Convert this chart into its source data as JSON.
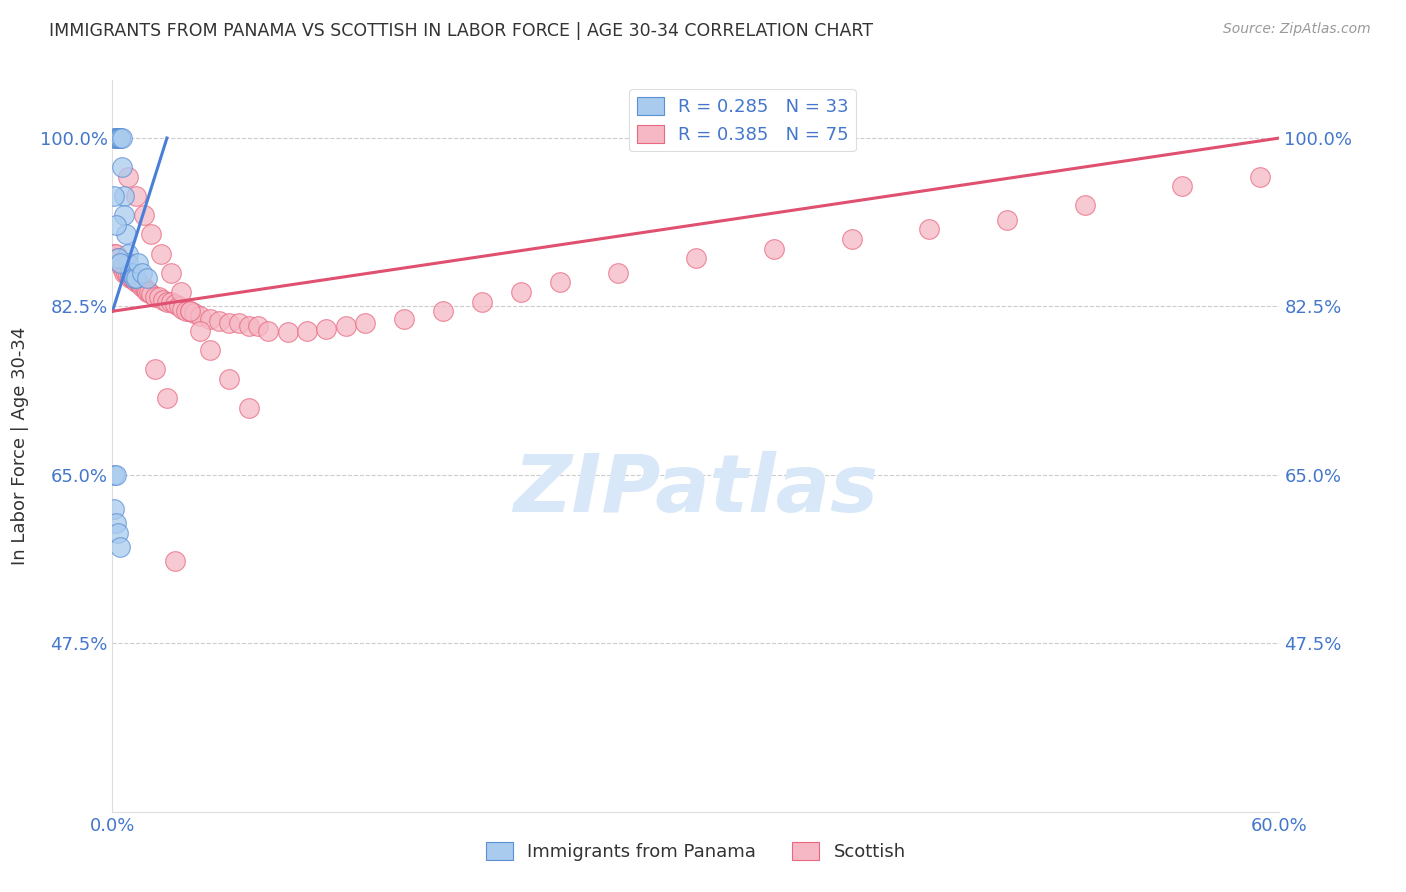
{
  "title": "IMMIGRANTS FROM PANAMA VS SCOTTISH IN LABOR FORCE | AGE 30-34 CORRELATION CHART",
  "source": "Source: ZipAtlas.com",
  "ylabel": "In Labor Force | Age 30-34",
  "xlim": [
    0.0,
    0.6
  ],
  "ylim": [
    0.3,
    1.06
  ],
  "yticks": [
    0.475,
    0.65,
    0.825,
    1.0
  ],
  "ytick_labels": [
    "47.5%",
    "65.0%",
    "82.5%",
    "100.0%"
  ],
  "blue_R": 0.285,
  "blue_N": 33,
  "pink_R": 0.385,
  "pink_N": 75,
  "blue_color": "#A8CBEE",
  "pink_color": "#F5B8C4",
  "blue_edge_color": "#5B8FD4",
  "pink_edge_color": "#E86880",
  "blue_line_color": "#4A7FD8",
  "pink_line_color": "#E05070",
  "title_color": "#333333",
  "axis_label_color": "#333333",
  "tick_color": "#4477CC",
  "source_color": "#999999",
  "watermark_color": "#D8E8F8",
  "blue_trend_x0": 0.0,
  "blue_trend_y0": 0.82,
  "blue_trend_x1": 0.028,
  "blue_trend_y1": 1.0,
  "pink_trend_x0": 0.0,
  "pink_trend_y0": 0.82,
  "pink_trend_x1": 0.6,
  "pink_trend_y1": 1.0,
  "blue_scatter_x": [
    0.001,
    0.002,
    0.002,
    0.003,
    0.003,
    0.003,
    0.004,
    0.004,
    0.004,
    0.005,
    0.005,
    0.006,
    0.006,
    0.007,
    0.008,
    0.008,
    0.009,
    0.01,
    0.011,
    0.012,
    0.001,
    0.002,
    0.003,
    0.004,
    0.001,
    0.002,
    0.001,
    0.002,
    0.003,
    0.004,
    0.013,
    0.015,
    0.018
  ],
  "blue_scatter_y": [
    1.0,
    1.0,
    1.0,
    1.0,
    1.0,
    1.0,
    1.0,
    1.0,
    1.0,
    1.0,
    0.97,
    0.94,
    0.92,
    0.9,
    0.88,
    0.87,
    0.86,
    0.86,
    0.855,
    0.855,
    0.94,
    0.91,
    0.875,
    0.87,
    0.65,
    0.65,
    0.615,
    0.6,
    0.59,
    0.575,
    0.87,
    0.86,
    0.855
  ],
  "pink_scatter_x": [
    0.001,
    0.002,
    0.003,
    0.004,
    0.005,
    0.006,
    0.007,
    0.008,
    0.009,
    0.01,
    0.011,
    0.012,
    0.013,
    0.014,
    0.015,
    0.016,
    0.017,
    0.018,
    0.019,
    0.02,
    0.022,
    0.024,
    0.026,
    0.028,
    0.03,
    0.032,
    0.034,
    0.036,
    0.038,
    0.04,
    0.042,
    0.045,
    0.05,
    0.055,
    0.06,
    0.065,
    0.07,
    0.075,
    0.08,
    0.09,
    0.1,
    0.11,
    0.12,
    0.13,
    0.15,
    0.17,
    0.19,
    0.21,
    0.23,
    0.26,
    0.3,
    0.34,
    0.38,
    0.42,
    0.46,
    0.5,
    0.55,
    0.59,
    0.008,
    0.012,
    0.016,
    0.02,
    0.025,
    0.03,
    0.035,
    0.04,
    0.045,
    0.05,
    0.06,
    0.07,
    0.022,
    0.028,
    0.032
  ],
  "pink_scatter_y": [
    0.88,
    0.88,
    0.875,
    0.87,
    0.865,
    0.86,
    0.86,
    0.858,
    0.855,
    0.855,
    0.852,
    0.85,
    0.85,
    0.848,
    0.845,
    0.845,
    0.842,
    0.84,
    0.84,
    0.838,
    0.835,
    0.835,
    0.832,
    0.83,
    0.83,
    0.828,
    0.825,
    0.822,
    0.82,
    0.82,
    0.818,
    0.815,
    0.812,
    0.81,
    0.808,
    0.808,
    0.805,
    0.805,
    0.8,
    0.798,
    0.8,
    0.802,
    0.805,
    0.808,
    0.812,
    0.82,
    0.83,
    0.84,
    0.85,
    0.86,
    0.875,
    0.885,
    0.895,
    0.905,
    0.915,
    0.93,
    0.95,
    0.96,
    0.96,
    0.94,
    0.92,
    0.9,
    0.88,
    0.86,
    0.84,
    0.82,
    0.8,
    0.78,
    0.75,
    0.72,
    0.76,
    0.73,
    0.56
  ]
}
